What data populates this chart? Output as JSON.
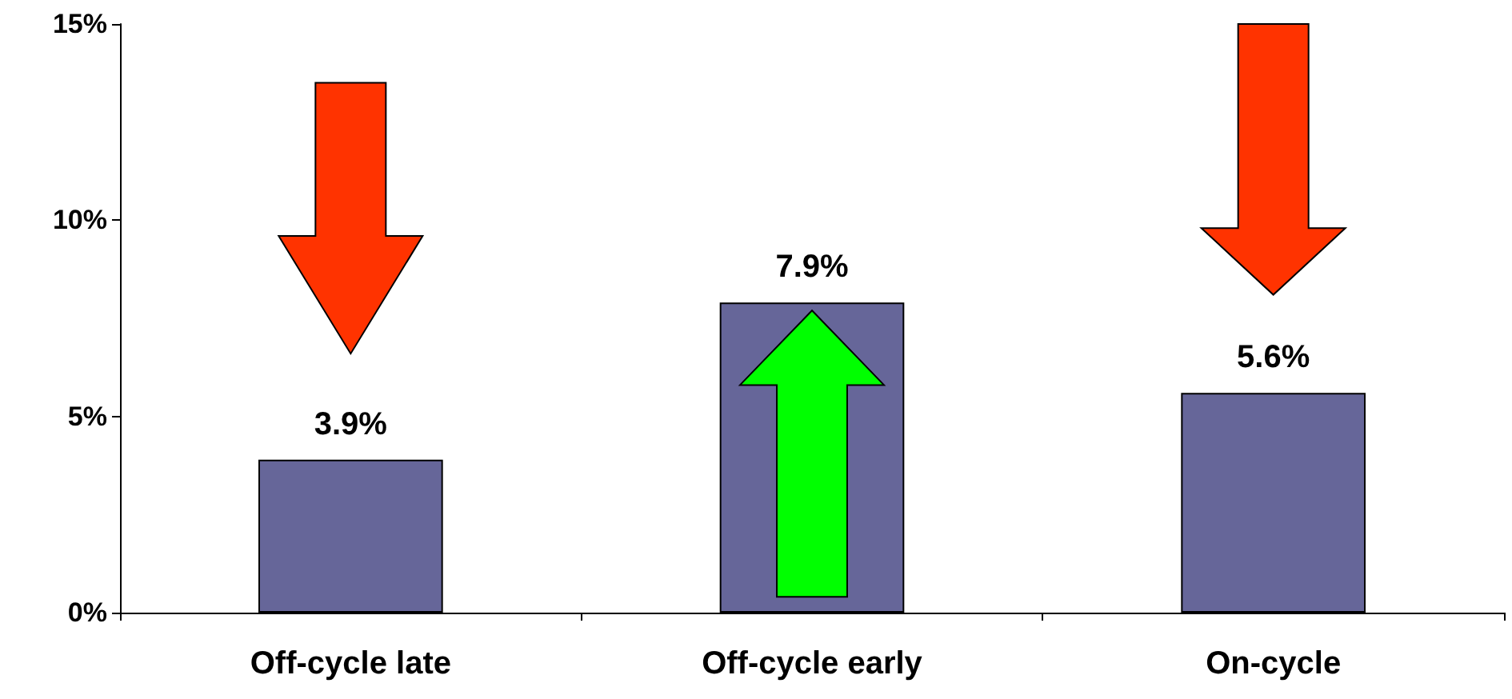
{
  "chart_data": {
    "type": "bar",
    "categories": [
      "Off-cycle late",
      "Off-cycle early",
      "On-cycle"
    ],
    "values": [
      3.9,
      7.9,
      5.6
    ],
    "color": "#666699",
    "value_labels": [
      "3.9%",
      "7.9%",
      "5.6%"
    ],
    "ylim": [
      0,
      15
    ],
    "yticks": [
      {
        "value": 0,
        "label": "0%"
      },
      {
        "value": 5,
        "label": "5%"
      },
      {
        "value": 10,
        "label": "10%"
      },
      {
        "value": 15,
        "label": "15%"
      }
    ],
    "grid": false
  }
}
